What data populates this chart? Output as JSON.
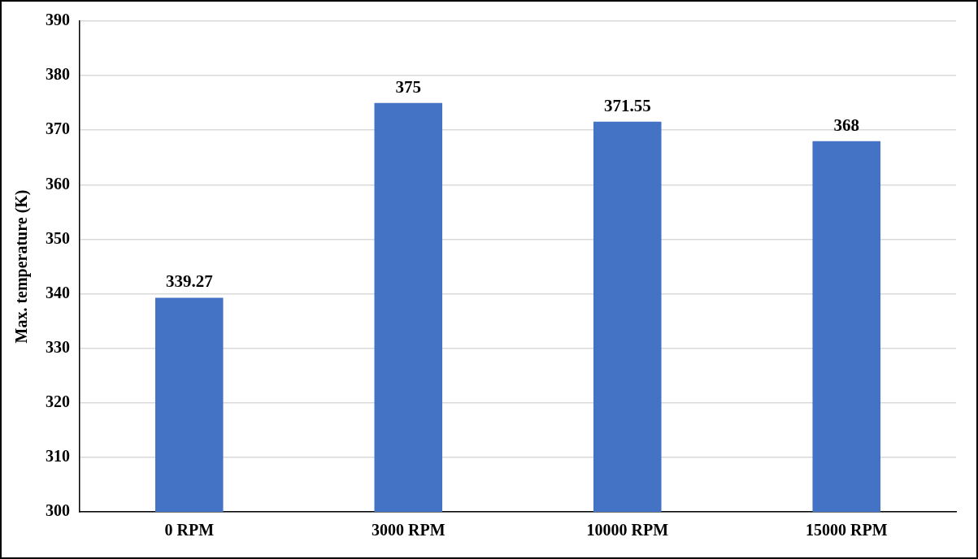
{
  "chart_data": {
    "type": "bar",
    "ylabel": "Max. temperature (K)",
    "categories": [
      "0 RPM",
      "3000 RPM",
      "10000 RPM",
      "15000 RPM"
    ],
    "values": [
      339.27,
      375,
      371.55,
      368
    ],
    "color": "#4472c4",
    "ylim": [
      300,
      390
    ],
    "yticks": [
      300,
      310,
      320,
      330,
      340,
      350,
      360,
      370,
      380,
      390
    ],
    "grid": "y",
    "data_labels": true
  }
}
